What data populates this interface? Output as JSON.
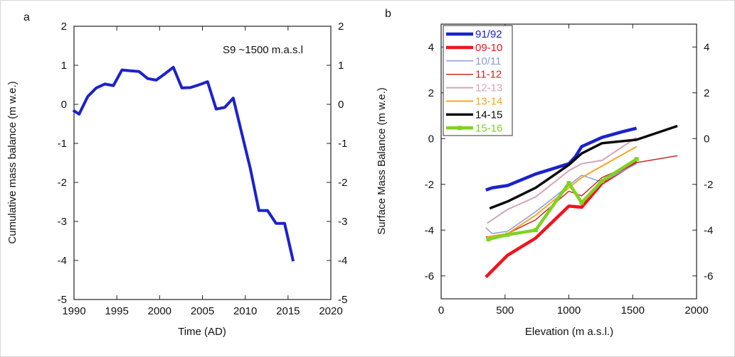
{
  "chart_data": [
    {
      "type": "line",
      "panel_label": "a",
      "annotation": "S9 ~1500 m.a.s.l",
      "xlabel": "Time (AD)",
      "ylabel": "Cumulative mass balance (m w.e.)",
      "xlim": [
        1990,
        2020
      ],
      "ylim": [
        -5,
        2
      ],
      "xticks": [
        "1990",
        "1995",
        "2000",
        "2005",
        "2010",
        "2015",
        "2020"
      ],
      "yticks": [
        "2",
        "1",
        "0",
        "-1",
        "-2",
        "-3",
        "-4",
        "-5"
      ],
      "yticks_right": [
        "2",
        "1",
        "0",
        "-1",
        "-2",
        "-3",
        "-4",
        "-5"
      ],
      "colors": {
        "line": "#1a22cc"
      },
      "series": [
        {
          "x": [
            1989.9,
            1990.6,
            1991.6,
            1992.6,
            1993.6,
            1994.6,
            1995.6,
            1996.6,
            1997.6,
            1998.6,
            1999.6,
            2000.6,
            2001.6,
            2002.6,
            2003.6,
            2004.6,
            2005.6,
            2006.6,
            2007.6,
            2008.6,
            2009.6,
            2010.6,
            2011.6,
            2012.6,
            2013.6,
            2014.6,
            2015.6
          ],
          "y": [
            -0.15,
            -0.25,
            0.2,
            0.42,
            0.52,
            0.48,
            0.88,
            0.86,
            0.84,
            0.66,
            0.62,
            0.78,
            0.95,
            0.42,
            0.43,
            0.5,
            0.58,
            -0.12,
            -0.08,
            0.16,
            -0.75,
            -1.65,
            -2.72,
            -2.72,
            -3.05,
            -3.05,
            -4.02
          ]
        }
      ]
    },
    {
      "type": "line",
      "panel_label": "b",
      "xlabel": "Elevation (m a.s.l.)",
      "ylabel": "Surface Mass Balance (m w.e.)",
      "xlim": [
        0,
        2000
      ],
      "ylim": [
        -7,
        5
      ],
      "xticks": [
        "0",
        "500",
        "1000",
        "1500",
        "2000"
      ],
      "yticks": [
        "4",
        "2",
        "0",
        "-2",
        "-4",
        "-6"
      ],
      "yticks_right": [
        "4",
        "2",
        "0",
        "-2",
        "-4",
        "-6"
      ],
      "legend_position": "top-left",
      "series": [
        {
          "name": "91/92",
          "color": "#1a22cc",
          "width": 4.5,
          "x": [
            350,
            400,
            520,
            740,
            1000,
            1050,
            1100,
            1260,
            1420,
            1530
          ],
          "y": [
            -2.25,
            -2.15,
            -2.05,
            -1.55,
            -1.1,
            -0.8,
            -0.35,
            0.05,
            0.3,
            0.45
          ]
        },
        {
          "name": "09-10",
          "color": "#f0141e",
          "width": 4.5,
          "x": [
            350,
            520,
            740,
            1000,
            1100,
            1260,
            1530
          ],
          "y": [
            -6.05,
            -5.1,
            -4.35,
            -2.95,
            -3.0,
            -1.95,
            -1.0
          ]
        },
        {
          "name": "10/11",
          "color": "#8c9ae0",
          "width": 1.5,
          "x": [
            350,
            400,
            520,
            740,
            1000,
            1100,
            1260,
            1530
          ],
          "y": [
            -3.9,
            -4.15,
            -4.05,
            -3.2,
            -2.05,
            -1.6,
            -1.9,
            -1.1
          ]
        },
        {
          "name": "11-12",
          "color": "#cc2a2a",
          "width": 1.5,
          "x": [
            350,
            520,
            740,
            1000,
            1100,
            1260,
            1530,
            1850
          ],
          "y": [
            -4.3,
            -4.15,
            -3.55,
            -2.3,
            -2.5,
            -1.7,
            -1.05,
            -0.75
          ]
        },
        {
          "name": "12-13",
          "color": "#d4a3b8",
          "width": 2,
          "x": [
            360,
            520,
            740,
            1000,
            1100,
            1260,
            1530
          ],
          "y": [
            -3.7,
            -3.1,
            -2.55,
            -1.4,
            -1.1,
            -0.95,
            0.05
          ]
        },
        {
          "name": "13-14",
          "color": "#f5a623",
          "width": 2,
          "x": [
            360,
            520,
            740,
            1000,
            1100,
            1260,
            1530
          ],
          "y": [
            -4.3,
            -4.15,
            -3.35,
            -2.15,
            -1.7,
            -1.2,
            -0.35
          ]
        },
        {
          "name": "14-15",
          "color": "#0a0a0a",
          "width": 3.5,
          "x": [
            380,
            520,
            740,
            1000,
            1100,
            1260,
            1530,
            1850
          ],
          "y": [
            -3.05,
            -2.75,
            -2.15,
            -1.15,
            -0.65,
            -0.2,
            -0.05,
            0.55
          ]
        },
        {
          "name": "15-16",
          "color": "#7ed321",
          "width": 4.5,
          "marker": "square",
          "x": [
            370,
            520,
            740,
            1000,
            1100,
            1260,
            1530
          ],
          "y": [
            -4.4,
            -4.2,
            -4.0,
            -1.95,
            -2.8,
            -1.85,
            -0.9
          ]
        }
      ]
    }
  ]
}
